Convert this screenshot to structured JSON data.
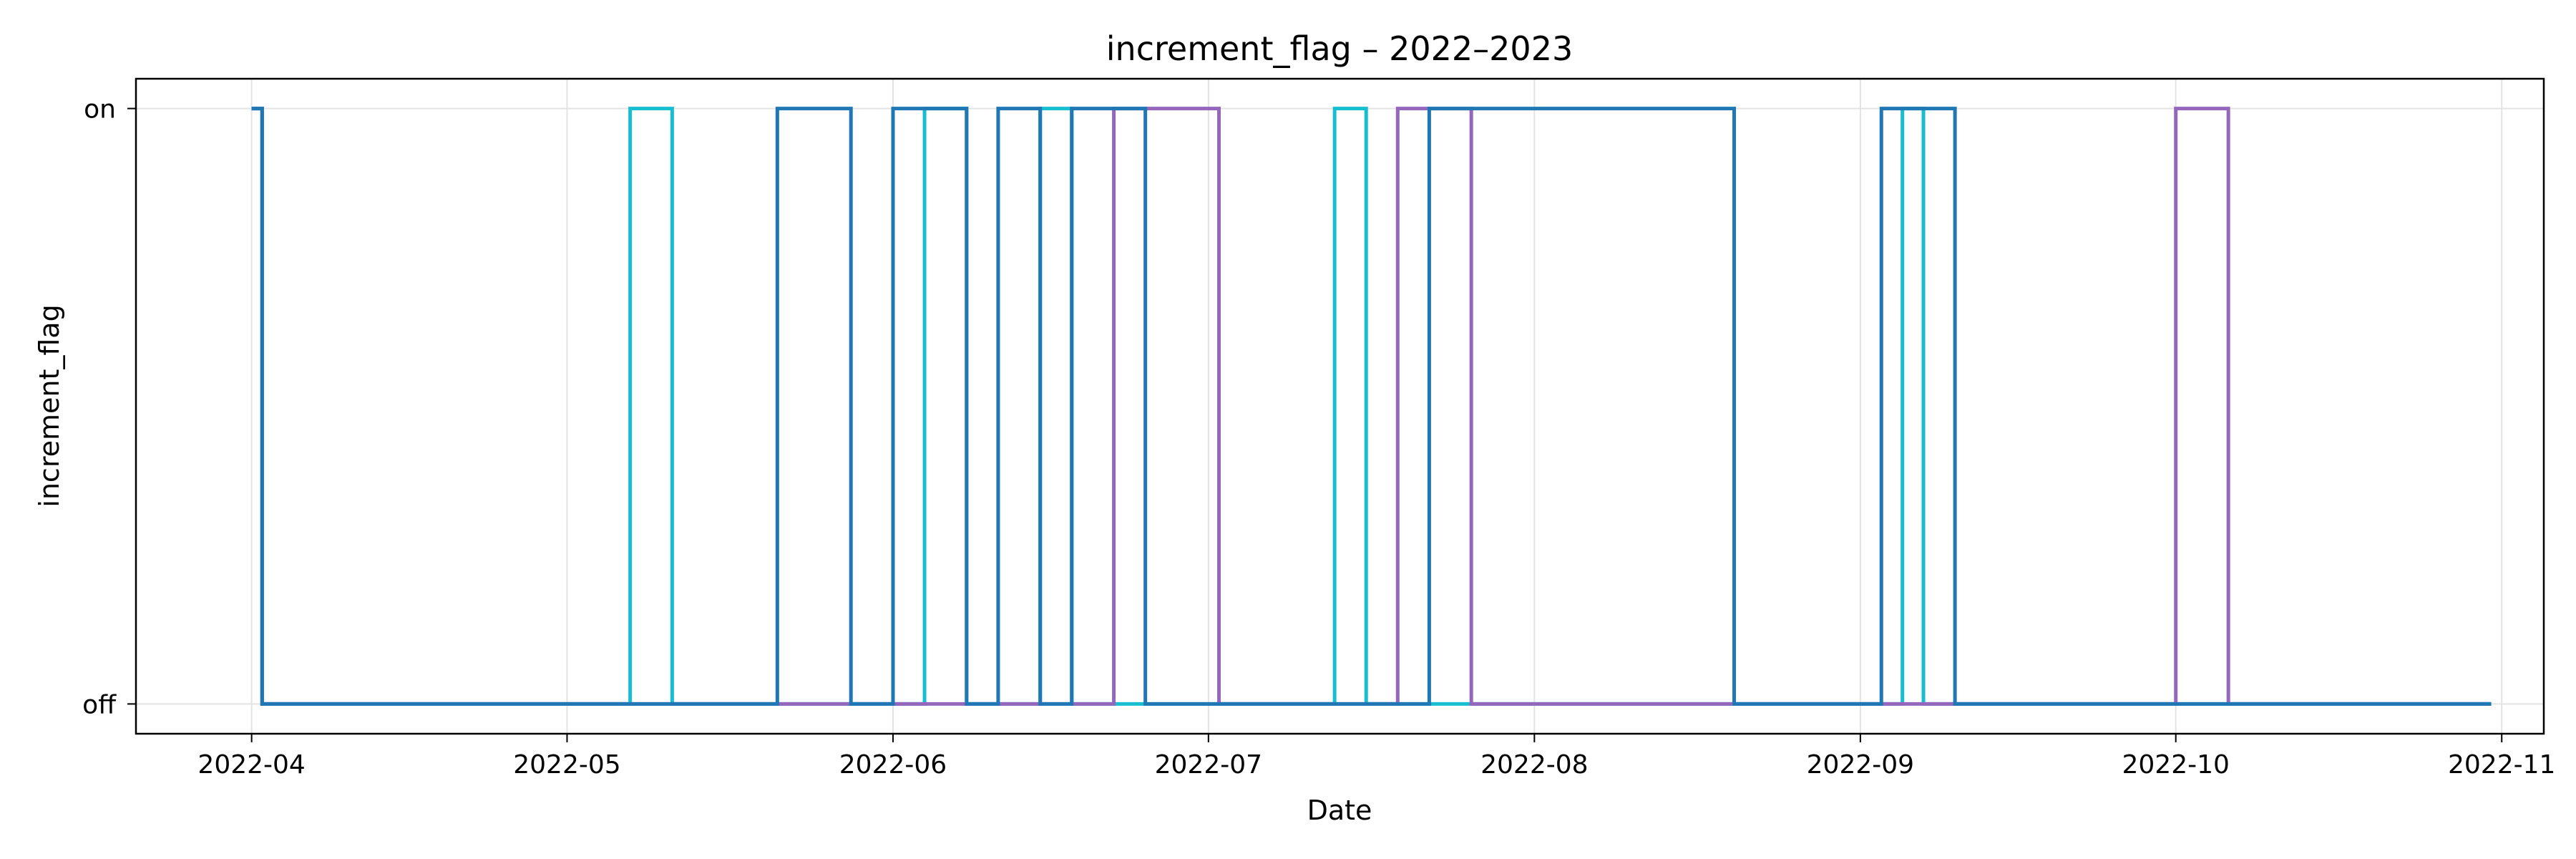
{
  "chart_data": {
    "type": "line",
    "step": true,
    "title": "increment_flag – 2022–2023",
    "xlabel": "Date",
    "ylabel": "increment_flag",
    "xlim": [
      "2022-03-21",
      "2022-11-05"
    ],
    "x_ticks": [
      "2022-04-01",
      "2022-05-01",
      "2022-06-01",
      "2022-07-01",
      "2022-08-01",
      "2022-09-01",
      "2022-10-01",
      "2022-11-01"
    ],
    "x_tick_labels": [
      "2022-04",
      "2022-05",
      "2022-06",
      "2022-07",
      "2022-08",
      "2022-09",
      "2022-10",
      "2022-11"
    ],
    "y_ticks": [
      0,
      1
    ],
    "y_tick_labels": [
      "off",
      "on"
    ],
    "ylim": [
      -0.05,
      1.05
    ],
    "grid": true,
    "series": [
      {
        "color": "#17becf",
        "points": [
          [
            "2022-04-01",
            1
          ],
          [
            "2022-04-02",
            0
          ],
          [
            "2022-05-07",
            1
          ],
          [
            "2022-05-11",
            0
          ],
          [
            "2022-06-04",
            1
          ],
          [
            "2022-06-08",
            0
          ],
          [
            "2022-06-15",
            1
          ],
          [
            "2022-06-18",
            0
          ],
          [
            "2022-07-13",
            1
          ],
          [
            "2022-07-16",
            0
          ],
          [
            "2022-09-05",
            1
          ],
          [
            "2022-09-07",
            0
          ],
          [
            "2022-10-31",
            0
          ]
        ]
      },
      {
        "color": "#9467bd",
        "points": [
          [
            "2022-04-01",
            1
          ],
          [
            "2022-04-02",
            0
          ],
          [
            "2022-06-22",
            1
          ],
          [
            "2022-07-02",
            0
          ],
          [
            "2022-07-19",
            1
          ],
          [
            "2022-07-26",
            0
          ],
          [
            "2022-10-01",
            1
          ],
          [
            "2022-10-06",
            0
          ],
          [
            "2022-10-31",
            0
          ]
        ]
      },
      {
        "color": "#1f77b4",
        "points": [
          [
            "2022-04-01",
            1
          ],
          [
            "2022-04-02",
            0
          ],
          [
            "2022-05-21",
            1
          ],
          [
            "2022-05-28",
            0
          ],
          [
            "2022-06-01",
            1
          ],
          [
            "2022-06-08",
            0
          ],
          [
            "2022-06-11",
            1
          ],
          [
            "2022-06-15",
            0
          ],
          [
            "2022-06-18",
            1
          ],
          [
            "2022-06-25",
            0
          ],
          [
            "2022-07-22",
            1
          ],
          [
            "2022-08-20",
            0
          ],
          [
            "2022-09-03",
            1
          ],
          [
            "2022-09-10",
            0
          ],
          [
            "2022-10-31",
            0
          ]
        ]
      }
    ]
  }
}
